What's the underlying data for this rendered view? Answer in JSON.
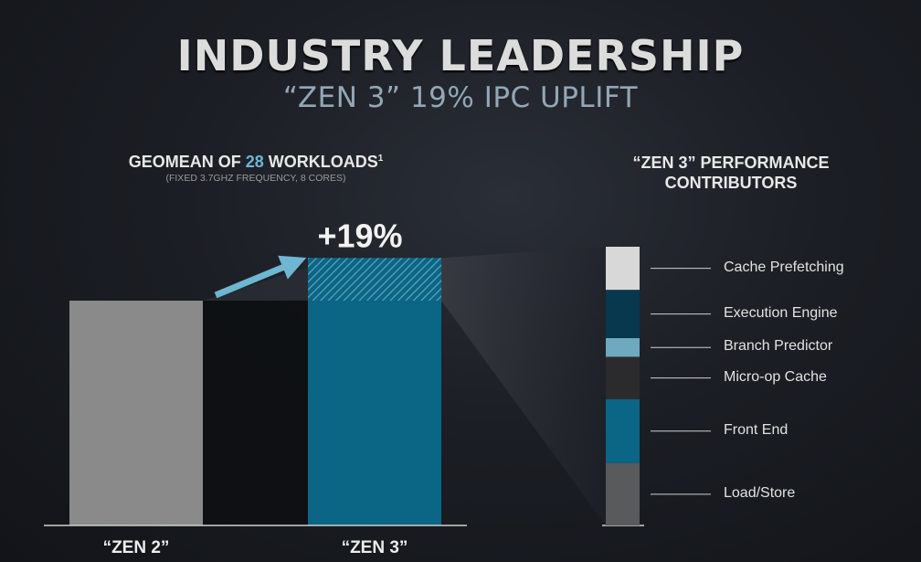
{
  "title": "INDUSTRY LEADERSHIP",
  "subtitle": "“ZEN 3” 19% IPC UPLIFT",
  "chart_data": {
    "type": "bar",
    "header": {
      "prefix": "GEOMEAN OF ",
      "highlight": "28",
      "suffix": " WORKLOADS",
      "footnote_mark": "1",
      "note": "(FIXED 3.7GHZ FREQUENCY, 8 CORES)"
    },
    "categories": [
      "“ZEN 2”",
      "“ZEN 3”"
    ],
    "values": [
      1.0,
      1.19
    ],
    "uplift_label": "+19%",
    "colors": {
      "zen2": "#8a8a8a",
      "zen3": "#0b6585",
      "accent": "#6eb6d2"
    },
    "contributors": {
      "title_line1": "“ZEN 3” PERFORMANCE",
      "title_line2": "CONTRIBUTORS",
      "items": [
        {
          "label": "Cache Prefetching",
          "share": 0.155,
          "color": "#d8d8d8"
        },
        {
          "label": "Execution Engine",
          "share": 0.173,
          "color": "#07384d"
        },
        {
          "label": "Branch Predictor",
          "share": 0.067,
          "color": "#6fa9bf"
        },
        {
          "label": "Micro-op Cache",
          "share": 0.152,
          "color": "#2b2b2d"
        },
        {
          "label": "Front End",
          "share": 0.229,
          "color": "#0b6585"
        },
        {
          "label": "Load/Store",
          "share": 0.224,
          "color": "#595a5c"
        }
      ]
    }
  }
}
